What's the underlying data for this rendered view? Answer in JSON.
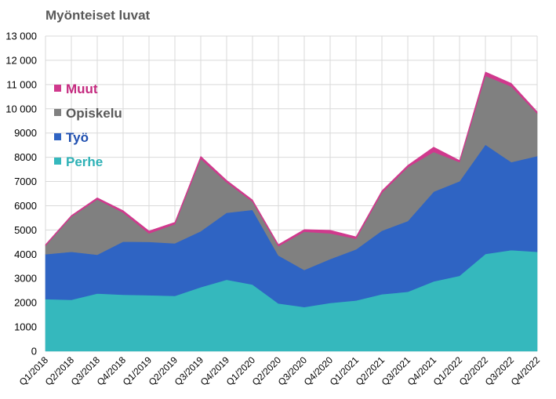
{
  "chart_data": {
    "type": "area",
    "stacked": true,
    "title": "Myönteiset luvat",
    "xlabel": "",
    "ylabel": "",
    "ylim": [
      0,
      13000
    ],
    "yticks": [
      0,
      1000,
      2000,
      3000,
      4000,
      5000,
      6000,
      7000,
      8000,
      9000,
      10000,
      11000,
      12000,
      13000
    ],
    "ytick_labels": [
      "0",
      "1000",
      "2000",
      "3000",
      "4000",
      "5000",
      "6000",
      "7000",
      "8000",
      "9000",
      "10 000",
      "11 000",
      "12 000",
      "13 000"
    ],
    "grid": true,
    "legend_position": "left",
    "categories": [
      "Q1/2018",
      "Q2/2018",
      "Q3/2018",
      "Q4/2018",
      "Q1/2019",
      "Q2/2019",
      "Q3/2019",
      "Q4/2019",
      "Q1/2020",
      "Q2/2020",
      "Q3/2020",
      "Q4/2020",
      "Q1/2021",
      "Q2/2021",
      "Q3/2021",
      "Q4/2021",
      "Q1/2022",
      "Q2/2022",
      "Q3/2022",
      "Q4/2022"
    ],
    "series": [
      {
        "name": "Perhe",
        "color": "#35b8bd",
        "values": [
          2150,
          2120,
          2380,
          2330,
          2310,
          2280,
          2640,
          2950,
          2750,
          1970,
          1820,
          1990,
          2090,
          2350,
          2450,
          2880,
          3110,
          4010,
          4170,
          4100
        ]
      },
      {
        "name": "Työ",
        "color": "#2f64c3",
        "values": [
          1850,
          1980,
          1600,
          2190,
          2200,
          2170,
          2310,
          2760,
          3080,
          1980,
          1530,
          1810,
          2110,
          2620,
          2920,
          3700,
          3900,
          4510,
          3630,
          3950
        ]
      },
      {
        "name": "Opiskelu",
        "color": "#808080",
        "values": [
          350,
          1450,
          2280,
          1200,
          350,
          790,
          2990,
          1260,
          340,
          380,
          1580,
          1060,
          440,
          1570,
          2220,
          1640,
          790,
          2840,
          3120,
          1760
        ]
      },
      {
        "name": "Muut",
        "color": "#d0398d",
        "values": [
          50,
          50,
          70,
          80,
          100,
          80,
          100,
          80,
          70,
          70,
          90,
          130,
          80,
          80,
          80,
          200,
          70,
          160,
          130,
          70
        ]
      }
    ]
  }
}
